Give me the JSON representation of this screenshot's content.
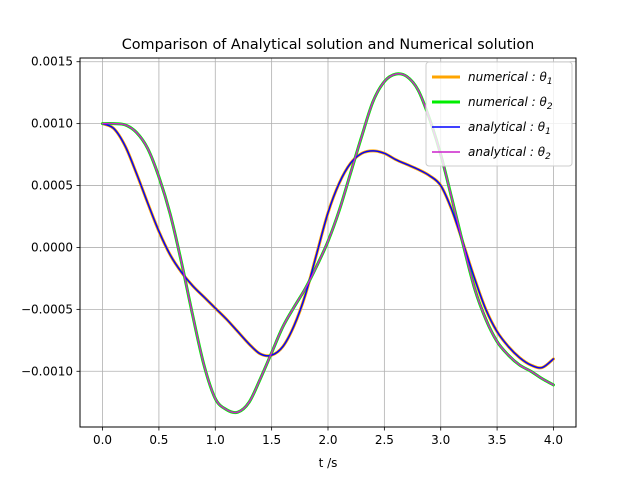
{
  "chart_data": {
    "type": "line",
    "title": "Comparison of Analytical solution and Numerical solution",
    "xlabel": "t /s",
    "ylabel": "",
    "xlim": [
      -0.2,
      4.2
    ],
    "ylim": [
      -0.00145,
      0.00153
    ],
    "xticks": [
      0.0,
      0.5,
      1.0,
      1.5,
      2.0,
      2.5,
      3.0,
      3.5,
      4.0
    ],
    "xtick_labels": [
      "0.0",
      "0.5",
      "1.0",
      "1.5",
      "2.0",
      "2.5",
      "3.0",
      "3.5",
      "4.0"
    ],
    "yticks": [
      -0.001,
      -0.0005,
      0.0,
      0.0005,
      0.001,
      0.0015
    ],
    "ytick_labels": [
      "−0.0010",
      "−0.0005",
      "0.0000",
      "0.0005",
      "0.0010",
      "0.0015"
    ],
    "grid": true,
    "legend_position": "upper right",
    "x": [
      0.0,
      0.1,
      0.2,
      0.3,
      0.4,
      0.5,
      0.6,
      0.7,
      0.8,
      0.9,
      1.0,
      1.1,
      1.2,
      1.3,
      1.4,
      1.5,
      1.6,
      1.7,
      1.8,
      1.9,
      2.0,
      2.1,
      2.2,
      2.3,
      2.4,
      2.5,
      2.6,
      2.7,
      2.8,
      2.9,
      3.0,
      3.1,
      3.2,
      3.3,
      3.4,
      3.5,
      3.6,
      3.7,
      3.8,
      3.9,
      4.0
    ],
    "series": [
      {
        "name": "numerical: θ₁",
        "legend_label": "numerical",
        "legend_sub": "1",
        "color": "#ffa500",
        "width": 3,
        "values": [
          0.001,
          0.00096,
          0.00082,
          0.0006,
          0.00036,
          0.00013,
          -6e-05,
          -0.0002,
          -0.00031,
          -0.0004,
          -0.00049,
          -0.00058,
          -0.00068,
          -0.00078,
          -0.00086,
          -0.00087,
          -0.0008,
          -0.00063,
          -0.00038,
          -5e-05,
          0.00028,
          0.00052,
          0.00068,
          0.00076,
          0.00078,
          0.00076,
          0.00071,
          0.00067,
          0.00063,
          0.00058,
          0.0005,
          0.0003,
          3e-05,
          -0.00025,
          -0.0005,
          -0.00068,
          -0.0008,
          -0.00089,
          -0.00095,
          -0.00097,
          -0.0009
        ]
      },
      {
        "name": "numerical: θ₂",
        "legend_label": "numerical",
        "legend_sub": "2",
        "color": "#00ee00",
        "width": 3,
        "values": [
          0.001,
          0.001,
          0.00099,
          0.00093,
          0.0008,
          0.00057,
          0.00027,
          -0.00012,
          -0.00055,
          -0.00095,
          -0.00122,
          -0.00131,
          -0.00133,
          -0.00125,
          -0.00106,
          -0.00085,
          -0.00064,
          -0.00048,
          -0.00033,
          -0.00015,
          5e-05,
          0.0003,
          0.0006,
          0.0009,
          0.00118,
          0.00134,
          0.0014,
          0.00138,
          0.00127,
          0.00104,
          0.00075,
          0.00039,
          2e-05,
          -0.00033,
          -0.00058,
          -0.00076,
          -0.00087,
          -0.00095,
          -0.001,
          -0.00106,
          -0.00111
        ]
      },
      {
        "name": "analytical: θ₁",
        "legend_label": "analytical",
        "legend_sub": "1",
        "color": "#0000ff",
        "width": 1.5,
        "values": [
          0.001,
          0.00096,
          0.00082,
          0.0006,
          0.00036,
          0.00013,
          -6e-05,
          -0.0002,
          -0.00031,
          -0.0004,
          -0.00049,
          -0.00058,
          -0.00068,
          -0.00078,
          -0.00086,
          -0.00087,
          -0.0008,
          -0.00063,
          -0.00038,
          -5e-05,
          0.00028,
          0.00052,
          0.00068,
          0.00076,
          0.00078,
          0.00076,
          0.00071,
          0.00067,
          0.00063,
          0.00058,
          0.0005,
          0.0003,
          3e-05,
          -0.00025,
          -0.0005,
          -0.00068,
          -0.0008,
          -0.00089,
          -0.00095,
          -0.00097,
          -0.0009
        ]
      },
      {
        "name": "analytical: θ₂",
        "legend_label": "analytical",
        "legend_sub": "2",
        "color": "#cc22cc",
        "width": 1.5,
        "values": [
          0.001,
          0.001,
          0.00099,
          0.00093,
          0.0008,
          0.00057,
          0.00027,
          -0.00012,
          -0.00055,
          -0.00095,
          -0.00122,
          -0.00131,
          -0.00133,
          -0.00125,
          -0.00106,
          -0.00085,
          -0.00064,
          -0.00048,
          -0.00033,
          -0.00015,
          5e-05,
          0.0003,
          0.0006,
          0.0009,
          0.00118,
          0.00134,
          0.0014,
          0.00138,
          0.00127,
          0.00104,
          0.00075,
          0.00039,
          2e-05,
          -0.00033,
          -0.00058,
          -0.00076,
          -0.00087,
          -0.00095,
          -0.001,
          -0.00106,
          -0.00111
        ]
      }
    ]
  }
}
